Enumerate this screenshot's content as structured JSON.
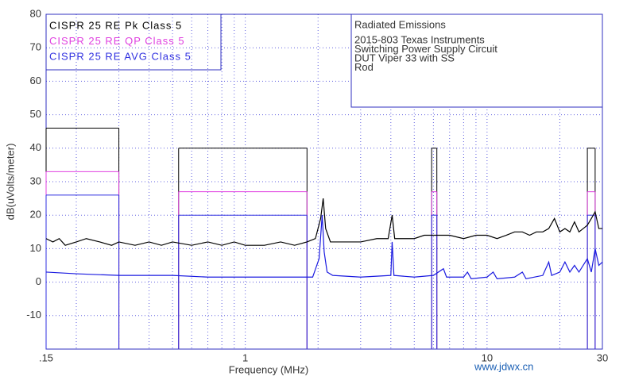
{
  "chart_data": {
    "type": "emissions",
    "xlabel": "Frequency (MHz)",
    "ylabel": "dB(uVolts/meter)",
    "xscale": "log",
    "xlim": [
      0.15,
      30
    ],
    "ylim": [
      -20,
      80
    ],
    "xticks": [
      {
        "value": 0.15,
        "label": ".15"
      },
      1,
      10,
      30
    ],
    "xgrid": [
      0.2,
      0.3,
      0.4,
      0.5,
      0.6,
      0.7,
      0.8,
      0.9,
      1,
      2,
      3,
      4,
      5,
      6,
      7,
      8,
      9,
      10,
      20
    ],
    "yticks": [
      -10,
      0,
      10,
      20,
      30,
      40,
      50,
      60,
      70,
      80
    ],
    "grid": true,
    "annotation": {
      "title": "Radiated Emissions",
      "lines": [
        "2015-803 Texas Instruments",
        "Switching Power Supply Circuit",
        "DUT Viper 33 with SS",
        "Rod"
      ]
    },
    "watermark": "www.jdwx.cn",
    "band_start": [
      0.15,
      0.53,
      5.9,
      26
    ],
    "band_end": [
      0.3,
      1.8,
      6.2,
      28
    ],
    "series": [
      {
        "name": "CISPR 25 RE Pk Class 5",
        "color": "#000000",
        "values": [
          46,
          40,
          40,
          40
        ]
      },
      {
        "name": "CISPR 25 RE QP Class 5",
        "color": "#e040e0",
        "values": [
          33,
          27,
          27,
          27
        ]
      },
      {
        "name": "CISPR 25 RE AVG Class 5",
        "color": "#3030e0",
        "values": [
          26,
          20,
          20,
          20
        ]
      }
    ],
    "traces": [
      {
        "color": "#000000",
        "x": [
          0.15,
          0.16,
          0.17,
          0.18,
          0.2,
          0.22,
          0.25,
          0.28,
          0.3,
          0.35,
          0.4,
          0.45,
          0.5,
          0.6,
          0.7,
          0.8,
          0.9,
          1,
          1.2,
          1.4,
          1.6,
          1.8,
          1.95,
          2.05,
          2.1,
          2.15,
          2.25,
          2.5,
          3,
          3.5,
          3.9,
          4.05,
          4.15,
          4.5,
          5,
          5.5,
          6,
          7,
          8,
          9,
          10,
          11,
          12,
          13,
          14,
          15,
          16,
          17,
          18,
          19,
          20,
          21,
          22,
          23,
          24,
          25,
          26,
          27,
          28,
          29,
          30
        ],
        "values": [
          13,
          12,
          13,
          11,
          12,
          13,
          12,
          11,
          12,
          11,
          12,
          11,
          12,
          11,
          12,
          11,
          12,
          11,
          11,
          12,
          11,
          12,
          13,
          19,
          25,
          16,
          12,
          12,
          12,
          13,
          13,
          20,
          13,
          13,
          13,
          14,
          14,
          14,
          13,
          14,
          14,
          13,
          14,
          15,
          15,
          14,
          15,
          15,
          16,
          19,
          15,
          16,
          15,
          18,
          15,
          16,
          17,
          19,
          21,
          16,
          16
        ]
      },
      {
        "color": "#1a1ae0",
        "x": [
          0.15,
          0.2,
          0.3,
          0.5,
          0.7,
          1,
          1.5,
          1.9,
          2.02,
          2.08,
          2.12,
          2.18,
          2.3,
          3,
          4.0,
          4.05,
          4.12,
          5,
          6,
          6.6,
          6.8,
          8,
          8.3,
          8.6,
          10,
          10.6,
          11,
          13,
          14,
          14.5,
          17,
          18,
          18.5,
          20,
          21,
          22,
          23,
          24,
          26,
          27,
          28,
          29,
          30
        ],
        "values": [
          3,
          2.5,
          2,
          2,
          1.5,
          1.5,
          1.5,
          1.5,
          7,
          20,
          9,
          3,
          2,
          1.5,
          2,
          12,
          2,
          1.5,
          2,
          4,
          1.5,
          1.5,
          3,
          1,
          1.5,
          3,
          1,
          1.5,
          3,
          1,
          2,
          6,
          2,
          3,
          6,
          3,
          5,
          3,
          7,
          3,
          10,
          5,
          6
        ]
      }
    ],
    "legend": "upper left"
  }
}
